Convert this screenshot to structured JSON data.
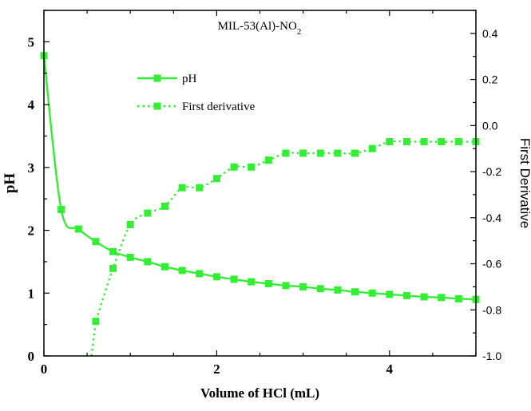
{
  "chart_data": {
    "type": "line",
    "title": "MIL-53(Al)-NO",
    "title_subscript": "2",
    "xlabel": "Volume of HCl (mL)",
    "ylabel": "pH",
    "y2label": "First Derivative",
    "xlim": [
      0,
      5
    ],
    "ylim": [
      0,
      5.5
    ],
    "y2lim": [
      -1.0,
      0.5
    ],
    "xticks": [
      "0",
      "2",
      "4"
    ],
    "yticks": [
      "0",
      "1",
      "2",
      "3",
      "4",
      "5"
    ],
    "y2ticks": [
      "-1.0",
      "-0.8",
      "-0.6",
      "-0.4",
      "-0.2",
      "0.0",
      "0.2",
      "0.4"
    ],
    "grid": false,
    "legend_position": "upper-middle",
    "colors": {
      "series": "#33ee33",
      "axes": "#000000"
    },
    "series": [
      {
        "name": "pH",
        "axis": "left",
        "line_style": "solid",
        "marker": "square",
        "x": [
          0.0,
          0.2,
          0.4,
          0.6,
          0.8,
          1.0,
          1.2,
          1.4,
          1.6,
          1.8,
          2.0,
          2.2,
          2.4,
          2.6,
          2.8,
          3.0,
          3.2,
          3.4,
          3.6,
          3.8,
          4.0,
          4.2,
          4.4,
          4.6,
          4.8,
          5.0
        ],
        "values": [
          4.78,
          2.33,
          2.02,
          1.82,
          1.66,
          1.57,
          1.5,
          1.42,
          1.36,
          1.31,
          1.26,
          1.22,
          1.18,
          1.15,
          1.12,
          1.1,
          1.07,
          1.05,
          1.02,
          1.0,
          0.98,
          0.96,
          0.94,
          0.93,
          0.91,
          0.9
        ]
      },
      {
        "name": "First derivative",
        "axis": "right",
        "line_style": "dotted",
        "marker": "square",
        "x": [
          0.6,
          0.8,
          1.0,
          1.2,
          1.4,
          1.6,
          1.8,
          2.0,
          2.2,
          2.4,
          2.6,
          2.8,
          3.0,
          3.2,
          3.4,
          3.6,
          3.8,
          4.0,
          4.2,
          4.4,
          4.6,
          4.8,
          5.0
        ],
        "values": [
          -0.85,
          -0.62,
          -0.43,
          -0.38,
          -0.35,
          -0.27,
          -0.27,
          -0.23,
          -0.18,
          -0.18,
          -0.15,
          -0.12,
          -0.12,
          -0.12,
          -0.12,
          -0.12,
          -0.1,
          -0.07,
          -0.07,
          -0.07,
          -0.07,
          -0.07,
          -0.07
        ],
        "curve_extends_below_axis_from_x": 0.55
      }
    ]
  }
}
